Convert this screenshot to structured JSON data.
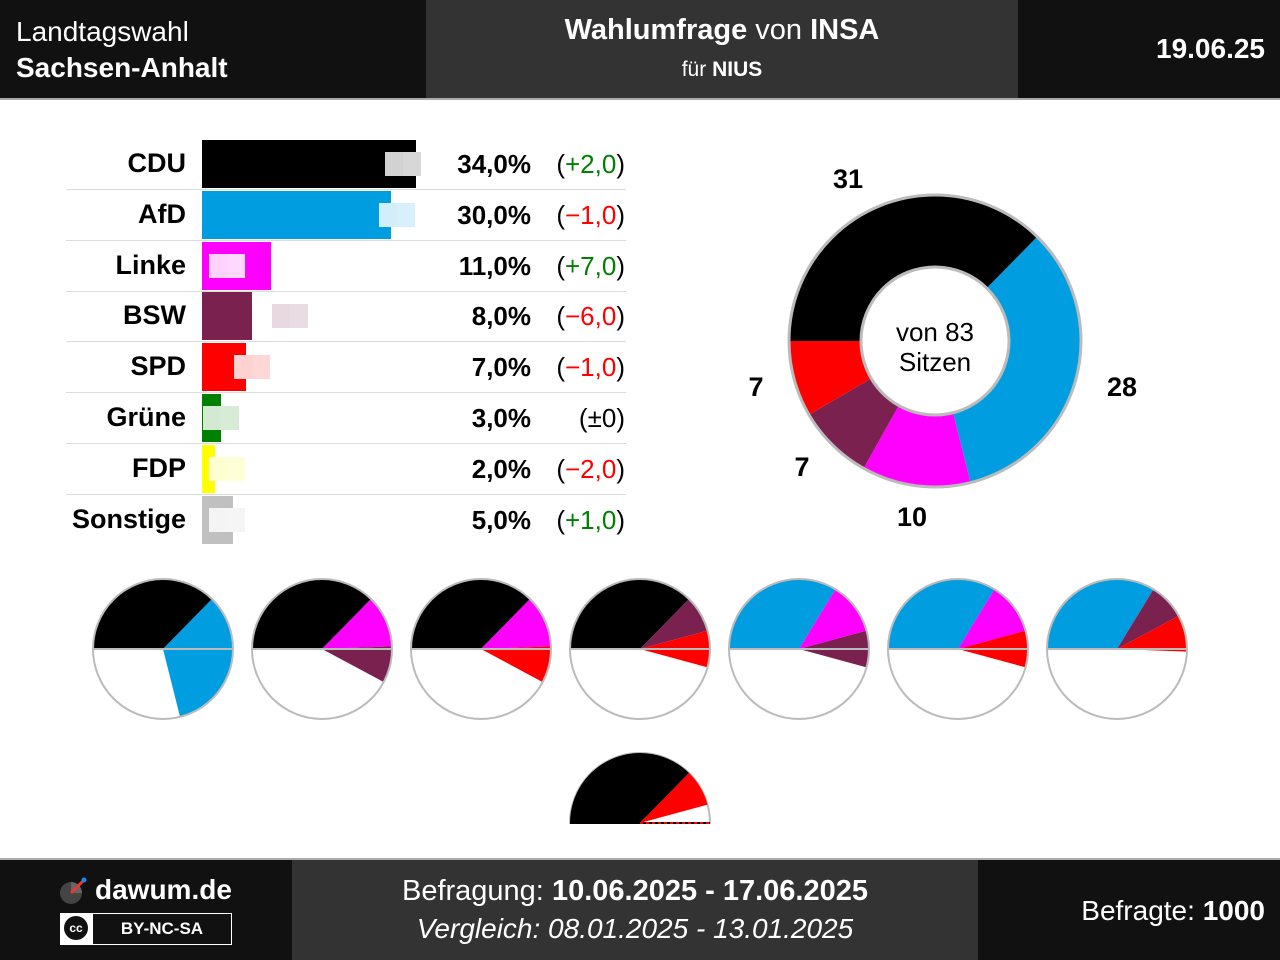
{
  "header": {
    "title_line1": "Landtagswahl",
    "title_line2": "Sachsen-Anhalt",
    "poll_label": "Wahlumfrage",
    "poll_von": "von",
    "institute": "INSA",
    "fuer": "für",
    "client": "NIUS",
    "date": "19.06.25"
  },
  "chart_data": [
    {
      "type": "bar",
      "parties": [
        {
          "name": "CDU",
          "value": 34.0,
          "value_label": "34,0%",
          "change": 2.0,
          "change_label": "(+2,0)",
          "color": "#000000",
          "trend": "up"
        },
        {
          "name": "AfD",
          "value": 30.0,
          "value_label": "30,0%",
          "change": -1.0,
          "change_label": "(−1,0)",
          "color": "#009ee0",
          "trend": "down"
        },
        {
          "name": "Linke",
          "value": 11.0,
          "value_label": "11,0%",
          "change": 7.0,
          "change_label": "(+7,0)",
          "color": "#ff00ff",
          "trend": "up"
        },
        {
          "name": "BSW",
          "value": 8.0,
          "value_label": "8,0%",
          "change": -6.0,
          "change_label": "(−6,0)",
          "color": "#7b2150",
          "trend": "down"
        },
        {
          "name": "SPD",
          "value": 7.0,
          "value_label": "7,0%",
          "change": -1.0,
          "change_label": "(−1,0)",
          "color": "#ff0000",
          "trend": "down"
        },
        {
          "name": "Grüne",
          "value": 3.0,
          "value_label": "3,0%",
          "change": 0.0,
          "change_label": "(±0)",
          "color": "#008000",
          "trend": "neutral"
        },
        {
          "name": "FDP",
          "value": 2.0,
          "value_label": "2,0%",
          "change": -2.0,
          "change_label": "(−2,0)",
          "color": "#ffff00",
          "trend": "down"
        },
        {
          "name": "Sonstige",
          "value": 5.0,
          "value_label": "5,0%",
          "change": 1.0,
          "change_label": "(+1,0)",
          "color": "#c0c0c0",
          "trend": "up"
        }
      ]
    },
    {
      "type": "pie",
      "total_seats": 83,
      "center_line1": "von 83",
      "center_line2": "Sitzen",
      "seats": [
        {
          "party": "CDU",
          "seats": 31,
          "color": "#000000"
        },
        {
          "party": "AfD",
          "seats": 28,
          "color": "#009ee0"
        },
        {
          "party": "Linke",
          "seats": 10,
          "color": "#ff00ff"
        },
        {
          "party": "BSW",
          "seats": 7,
          "color": "#7b2150"
        },
        {
          "party": "SPD",
          "seats": 7,
          "color": "#ff0000"
        }
      ]
    },
    {
      "type": "pie",
      "coalitions": [
        {
          "parties": [
            {
              "party": "CDU",
              "seats": 31
            },
            {
              "party": "AfD",
              "seats": 28
            }
          ]
        },
        {
          "parties": [
            {
              "party": "CDU",
              "seats": 31
            },
            {
              "party": "Linke",
              "seats": 10
            },
            {
              "party": "BSW",
              "seats": 7
            }
          ]
        },
        {
          "parties": [
            {
              "party": "CDU",
              "seats": 31
            },
            {
              "party": "Linke",
              "seats": 10
            },
            {
              "party": "SPD",
              "seats": 7
            }
          ]
        },
        {
          "parties": [
            {
              "party": "CDU",
              "seats": 31
            },
            {
              "party": "BSW",
              "seats": 7
            },
            {
              "party": "SPD",
              "seats": 7
            }
          ]
        },
        {
          "parties": [
            {
              "party": "AfD",
              "seats": 28
            },
            {
              "party": "Linke",
              "seats": 10
            },
            {
              "party": "BSW",
              "seats": 7
            }
          ]
        },
        {
          "parties": [
            {
              "party": "AfD",
              "seats": 28
            },
            {
              "party": "Linke",
              "seats": 10
            },
            {
              "party": "SPD",
              "seats": 7
            }
          ]
        },
        {
          "parties": [
            {
              "party": "AfD",
              "seats": 28
            },
            {
              "party": "BSW",
              "seats": 7
            },
            {
              "party": "SPD",
              "seats": 7
            }
          ]
        },
        {
          "parties": [
            {
              "party": "CDU",
              "seats": 31
            },
            {
              "party": "SPD",
              "seats": 7
            }
          ],
          "no_majority": true
        }
      ]
    }
  ],
  "colors": {
    "CDU": "#000000",
    "AfD": "#009ee0",
    "Linke": "#ff00ff",
    "BSW": "#7b2150",
    "SPD": "#ff0000",
    "Grüne": "#008000",
    "FDP": "#ffff00",
    "Sonstige": "#c0c0c0"
  },
  "footer": {
    "brand": "dawum.de",
    "license": "BY-NC-SA",
    "license_icon": "cc",
    "befragung_label": "Befragung:",
    "befragung_range": "10.06.2025 - 17.06.2025",
    "vergleich_text": "Vergleich: 08.01.2025 - 13.01.2025",
    "befragte_label": "Befragte:",
    "befragte_value": "1000"
  }
}
